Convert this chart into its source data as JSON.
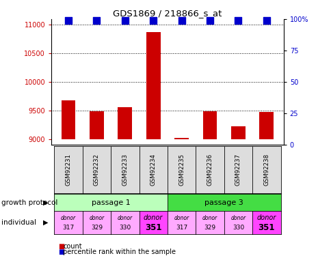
{
  "title": "GDS1869 / 218866_s_at",
  "samples": [
    "GSM92231",
    "GSM92232",
    "GSM92233",
    "GSM92234",
    "GSM92235",
    "GSM92236",
    "GSM92237",
    "GSM92238"
  ],
  "counts": [
    9680,
    9490,
    9555,
    10870,
    9020,
    9490,
    9220,
    9470
  ],
  "percentile": [
    99,
    99,
    99,
    99,
    99,
    99,
    99,
    99
  ],
  "ylim_left": [
    8900,
    11100
  ],
  "ylim_right": [
    0,
    100
  ],
  "yticks_left": [
    9000,
    9500,
    10000,
    10500,
    11000
  ],
  "yticks_right": [
    0,
    25,
    50,
    75,
    100
  ],
  "bar_color": "#cc0000",
  "dot_color": "#0000cc",
  "passage1_color": "#bbffbb",
  "passage3_color": "#44dd44",
  "individual_colors_light": "#ffaaff",
  "individual_colors_dark": "#ff44ff",
  "dark_individuals": [
    3,
    7
  ],
  "individuals_top": [
    "donor",
    "donor",
    "donor",
    "donor",
    "donor",
    "donor",
    "donor",
    "donor"
  ],
  "individuals_bot": [
    "317",
    "329",
    "330",
    "351",
    "317",
    "329",
    "330",
    "351"
  ],
  "bar_width": 0.5,
  "dot_size": 55,
  "xlim": [
    -0.6,
    7.6
  ],
  "grid_yticks": [
    9500,
    10000,
    10500,
    11000
  ],
  "ybase": 9000
}
